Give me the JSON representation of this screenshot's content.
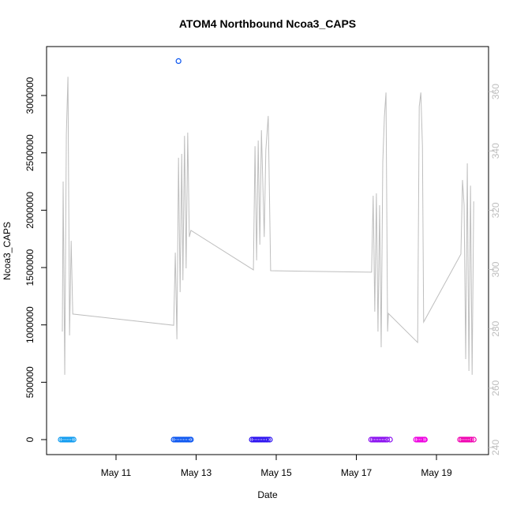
{
  "chart_data": {
    "type": "scatter",
    "title": "ATOM4 Northbound Ncoa3_CAPS",
    "xlabel": "Date",
    "ylabel": "Ncoa3_CAPS",
    "xlim": [
      9.266,
      20.3
    ],
    "xticks": [
      {
        "value": 11,
        "label": "May 11"
      },
      {
        "value": 13,
        "label": "May 13"
      },
      {
        "value": 15,
        "label": "May 15"
      },
      {
        "value": 17,
        "label": "May 17"
      },
      {
        "value": 19,
        "label": "May 19"
      }
    ],
    "ylim": [
      -130700,
      3426600
    ],
    "yticks": [
      0,
      500000,
      1000000,
      1500000,
      2000000,
      2500000,
      3000000
    ],
    "y2lim": [
      237.6,
      375.2
    ],
    "y2ticks": [
      240,
      260,
      280,
      300,
      320,
      340,
      360
    ],
    "y2color": "#bebebe",
    "series": [
      {
        "color": "#0f9bf0",
        "x": [
          9.62,
          9.66,
          9.7,
          9.74,
          9.78,
          9.82,
          9.86,
          9.9,
          9.94
        ],
        "values": [
          0,
          0,
          0,
          0,
          0,
          0,
          0,
          0,
          0
        ]
      },
      {
        "color": "#0a55f0",
        "x": [
          12.44,
          12.48,
          12.52,
          12.56,
          12.6,
          12.64,
          12.68,
          12.72,
          12.76,
          12.8,
          12.84,
          12.87,
          12.56
        ],
        "values": [
          0,
          0,
          0,
          0,
          0,
          0,
          0,
          0,
          0,
          0,
          0,
          0,
          3300000
        ]
      },
      {
        "color": "#2a10f0",
        "x": [
          14.39,
          14.43,
          14.47,
          14.51,
          14.55,
          14.59,
          14.63,
          14.67,
          14.71,
          14.75,
          14.79,
          14.84
        ],
        "values": [
          0,
          0,
          0,
          0,
          0,
          0,
          0,
          0,
          0,
          0,
          0,
          0
        ]
      },
      {
        "color": "#8a10f0",
        "x": [
          17.37,
          17.41,
          17.45,
          17.49,
          17.53,
          17.57,
          17.61,
          17.65,
          17.69,
          17.73,
          17.77,
          17.84
        ],
        "values": [
          0,
          0,
          0,
          0,
          0,
          0,
          0,
          0,
          0,
          0,
          0,
          0
        ]
      },
      {
        "color": "#ee00e0",
        "x": [
          18.49,
          18.53,
          18.57,
          18.61,
          18.65,
          18.69,
          18.71
        ],
        "values": [
          0,
          0,
          0,
          0,
          0,
          0,
          0
        ]
      },
      {
        "color": "#f000b0",
        "x": [
          19.59,
          19.63,
          19.67,
          19.71,
          19.75,
          19.79,
          19.83,
          19.87,
          19.93
        ],
        "values": [
          0,
          0,
          0,
          0,
          0,
          0,
          0,
          0,
          0
        ]
      },
      {
        "type": "line",
        "axis": "y2",
        "color": "#bebebe",
        "x": [
          9.66,
          9.68,
          9.72,
          9.76,
          9.8,
          9.84,
          9.88,
          9.92,
          12.44,
          12.48,
          12.52,
          12.56,
          12.6,
          12.64,
          12.67,
          12.71,
          12.75,
          12.79,
          12.83,
          12.87,
          14.43,
          14.47,
          14.51,
          14.55,
          14.59,
          14.63,
          14.7,
          14.74,
          14.8,
          14.86,
          17.38,
          17.42,
          17.46,
          17.5,
          17.54,
          17.58,
          17.62,
          17.66,
          17.7,
          17.74,
          17.78,
          17.8,
          18.53,
          18.57,
          18.61,
          18.65,
          18.68,
          19.61,
          19.65,
          19.69,
          19.73,
          19.77,
          19.81,
          19.85,
          19.89,
          19.93
        ],
        "values": [
          279.1,
          329.7,
          264.5,
          345.6,
          365.0,
          277.8,
          309.7,
          285.0,
          281.2,
          305.7,
          276.5,
          337.7,
          292.4,
          339.0,
          296.4,
          345.1,
          300.4,
          346.2,
          311.0,
          313.2,
          299.9,
          341.6,
          303.1,
          343.5,
          308.4,
          347.0,
          311.0,
          340.3,
          351.8,
          299.6,
          299.1,
          324.9,
          285.8,
          325.7,
          279.1,
          321.7,
          273.8,
          336.3,
          351.5,
          359.7,
          279.1,
          285.2,
          275.4,
          355.0,
          359.7,
          341.6,
          282.3,
          305.2,
          330.2,
          321.7,
          269.8,
          335.8,
          265.8,
          328.3,
          264.5,
          323.0
        ]
      }
    ]
  }
}
